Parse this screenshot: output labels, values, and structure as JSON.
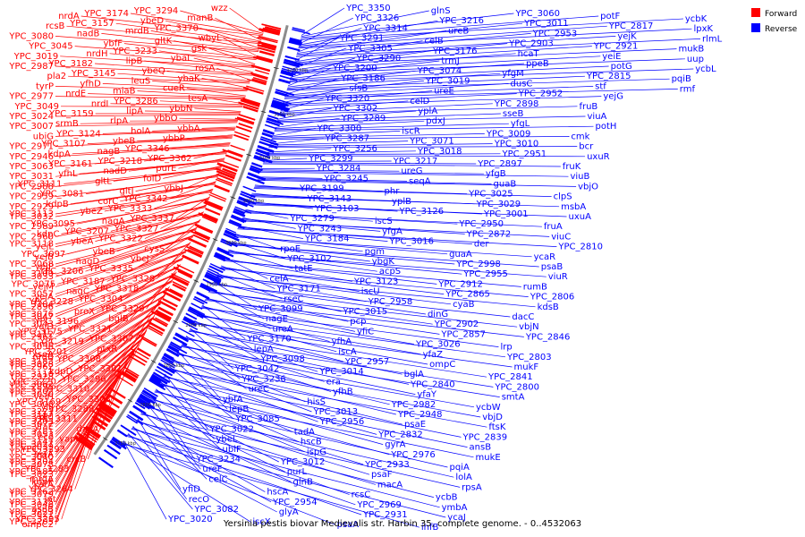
{
  "caption": "Yersinia pestis biovar Medievalis str. Harbin 35, complete genome. - 0..4532063",
  "legend": [
    {
      "label": "Forward",
      "color": "#ff0000"
    },
    {
      "label": "Reverse",
      "color": "#0000ff"
    }
  ],
  "colors": {
    "forward": "#ff0000",
    "reverse": "#0000ff",
    "backbone": "#9a9a9a"
  },
  "ticks": [
    "3200 kbp",
    "3150 kbp",
    "3100 kbp",
    "3050 kbp",
    "3000 kbp",
    "2950 kbp",
    "2900 kbp",
    "2850 kbp",
    "2800 kbp",
    "2750 kbp"
  ],
  "forward_labels": [
    "wzz",
    "manB",
    "YPC_3370",
    "wbyL",
    "gsk",
    "ybaL",
    "rosA",
    "ybaK",
    "cueR",
    "tesA",
    "ybbN",
    "ybbO",
    "ybbA",
    "ybbP",
    "YPC_3346",
    "YPC_3362",
    "purE",
    "folD",
    "ybbJ",
    "YPC_3342",
    "YPC_3333",
    "YPC_3337",
    "YPC_3327",
    "YPC_3322",
    "cysS",
    "ybcJ",
    "YPC_3335",
    "YPC_3328",
    "YPC_3318",
    "YPC_3304",
    "YPC_3329",
    "bglB",
    "YPC_3321",
    "YPC_3307",
    "ptxR",
    "YPC_3308",
    "YPC_3301",
    "YPC_3296",
    "YPC_3310",
    "YPC_3303",
    "YPC_3288",
    "YPC_3311",
    "dacA",
    "yapC",
    "YPC_3293",
    "crcB",
    "YPC_3283",
    "mrdA",
    "YPC_3264",
    "lnt",
    "asnB",
    "YPC_3295",
    "YPC_3294",
    "ybeD",
    "mrdB",
    "gltK",
    "YPC_3233",
    "lipB",
    "ybeQ",
    "leuS",
    "miaB",
    "YPC_3286",
    "lipA",
    "rlpA",
    "holA",
    "ybeB",
    "nagB",
    "YPC_3218",
    "nadD",
    "gltL",
    "gltJ",
    "corC",
    "ybeZ",
    "nagA",
    "YPC_3207",
    "ybeA",
    "ybeB",
    "nagD",
    "YPC_3206",
    "YPC_3187",
    "nagC",
    "YPC_3228",
    "proX",
    "YPC_3196",
    "YPC_3175",
    "YPC_3219",
    "YPC_3201",
    "YPC_3183",
    "kdpD",
    "YPC_3220",
    "YPC_3202",
    "YPC_3169",
    "YPC_3221",
    "YPC_3203",
    "YPC_3181",
    "YPC_3147",
    "YPC_3222",
    "YPC_3204",
    "YPC_3185",
    "kdpE",
    "YPC_3162",
    "YPC_3135",
    "YPC_3223",
    "YPC_3205",
    "YPC_3174",
    "YPC_3157",
    "nadB",
    "ybfF",
    "nrdH",
    "YPC_3182",
    "YPC_3145",
    "yfhD",
    "nrdE",
    "nrdI",
    "YPC_3159",
    "srmB",
    "YPC_3124",
    "YPC_3107",
    "kdpA",
    "YPC_3161",
    "yfhL",
    "YPC_3111",
    "YPC_3081",
    "kdpB",
    "YPC_3113",
    "YPC_3095",
    "kdpC",
    "YPC_3118",
    "YPC_3097",
    "YPC_3068",
    "YPC_3100",
    "YPC_3075",
    "YPC_3057",
    "YPC_3104",
    "YPC_3076",
    "YPC_3043",
    "YPC_3112",
    "hmp",
    "xseA",
    "YPC_3028",
    "YPC_3116",
    "YPC_3062",
    "YPC_3030",
    "YPC_3008",
    "YPC_3117",
    "YPC_3077",
    "YPC_3053",
    "YPC_3027",
    "ssrA",
    "YPC_3078",
    "YPC_3023",
    "katA",
    "YPC_3079",
    "YPC_3046",
    "YPC_3021",
    "ompC2",
    "nrdA",
    "rcsB",
    "YPC_3080",
    "YPC_3045",
    "YPC_3019",
    "YPC_2987",
    "pla2",
    "tyrP",
    "YPC_2977",
    "YPC_3049",
    "YPC_3024",
    "YPC_3007",
    "ubiG",
    "YPC_2971",
    "YPC_2946",
    "YPC_3063",
    "YPC_3031",
    "YPC_2988",
    "YPC_2959",
    "YPC_2929",
    "YPC_3032",
    "YPC_2989",
    "YPC_2960",
    "yejL",
    "yejB",
    "yejP",
    "YPC_3033",
    "yejM",
    "yejA",
    "YPC_2896",
    "YPC_3047",
    "yajD",
    "YPC_2961",
    "YPC_3036",
    "nrdB",
    "YPC_2962",
    "YPC_2928",
    "YPC_2895",
    "yeiH",
    "yliJ",
    "dld",
    "yfaE",
    "eco",
    "YPC_3039",
    "YPC_3040"
  ],
  "reverse_labels": [
    "YPC_3350",
    "YPC_3326",
    "YPC_3314",
    "YPC_3291",
    "YPC_3305",
    "YPC_3290",
    "YPC_3200",
    "YPC_3186",
    "sfsB",
    "YPC_3320",
    "YPC_3302",
    "YPC_3289",
    "YPC_3300",
    "YPC_3287",
    "YPC_3256",
    "YPC_3299",
    "YPC_3284",
    "YPC_3245",
    "YPC_3199",
    "YPC_3143",
    "YPC_3103",
    "YPC_3279",
    "YPC_3243",
    "YPC_3184",
    "rpoE",
    "YPC_3102",
    "tatE",
    "celA",
    "YPC_3171",
    "rseC",
    "YPC_3099",
    "nagE",
    "ureA",
    "YPC_3170",
    "lepA",
    "YPC_3098",
    "YPC_3042",
    "YPC_3236",
    "ureC",
    "ybfA",
    "lepB",
    "YPC_3085",
    "YPC_3022",
    "ybeL",
    "ubiF",
    "YPC_3234",
    "ureF",
    "celC",
    "yfiD",
    "recO",
    "YPC_3082",
    "YPC_3020",
    "glnS",
    "YPC_3216",
    "ureB",
    "celB",
    "YPC_3176",
    "trmJ",
    "YPC_3074",
    "YPC_3019",
    "ureE",
    "celD",
    "yplA",
    "pdxJ",
    "iscR",
    "YPC_3071",
    "YPC_3018",
    "YPC_3217",
    "ureG",
    "seqA",
    "phr",
    "yplB",
    "YPC_3126",
    "iscS",
    "yfgA",
    "YPC_3016",
    "pgm",
    "ybgK",
    "acpS",
    "YPC_3123",
    "iscU",
    "YPC_2958",
    "YPC_3015",
    "pcp",
    "yfiC",
    "yfhA",
    "iscA",
    "YPC_2957",
    "YPC_3014",
    "era",
    "yfhB",
    "hisS",
    "YPC_3013",
    "YPC_2956",
    "tadA",
    "hscB",
    "ispG",
    "YPC_3012",
    "purL",
    "glnB",
    "hscA",
    "YPC_2954",
    "glyA",
    "iscX",
    "YPC_3060",
    "YPC_3011",
    "YPC_2953",
    "YPC_2903",
    "hcaT",
    "ppeB",
    "yfgM",
    "dusC",
    "YPC_2952",
    "YPC_2898",
    "sseB",
    "yfgL",
    "YPC_3009",
    "YPC_3010",
    "YPC_2951",
    "YPC_2897",
    "yfgB",
    "guaB",
    "YPC_3025",
    "YPC_3029",
    "YPC_3001",
    "YPC_2950",
    "YPC_2872",
    "der",
    "guaA",
    "YPC_2998",
    "YPC_2955",
    "YPC_2912",
    "YPC_2865",
    "cyaB",
    "dinG",
    "YPC_2902",
    "YPC_2857",
    "YPC_3026",
    "yfaZ",
    "ompC",
    "bglA",
    "YPC_2840",
    "yfaY",
    "YPC_2982",
    "YPC_2948",
    "psaE",
    "YPC_2832",
    "gyrA",
    "YPC_2976",
    "YPC_2933",
    "psaF",
    "macA",
    "rcsC",
    "YPC_2969",
    "YPC_2931",
    "psaA",
    "potF",
    "YPC_2817",
    "yejK",
    "YPC_2921",
    "yeiE",
    "potG",
    "YPC_2815",
    "stf",
    "yejG",
    "fruB",
    "viuA",
    "potH",
    "cmk",
    "bcr",
    "uxuR",
    "fruK",
    "viuB",
    "vbjO",
    "clpS",
    "msbA",
    "uxuA",
    "fruA",
    "viuC",
    "YPC_2810",
    "ycaR",
    "psaB",
    "viuR",
    "rumB",
    "YPC_2806",
    "kdsB",
    "dacC",
    "vbjN",
    "YPC_2846",
    "lrp",
    "YPC_2803",
    "mukF",
    "YPC_2841",
    "YPC_2800",
    "smtA",
    "ycbW",
    "vbjD",
    "ftsK",
    "YPC_2839",
    "ansB",
    "mukE",
    "pqiA",
    "lolA",
    "rpsA",
    "ycbB",
    "ymbA",
    "ycaJ",
    "ihfB",
    "ycbK",
    "lpxK",
    "rlmL",
    "mukB",
    "uup",
    "ycbL",
    "pqiB",
    "rmf"
  ]
}
